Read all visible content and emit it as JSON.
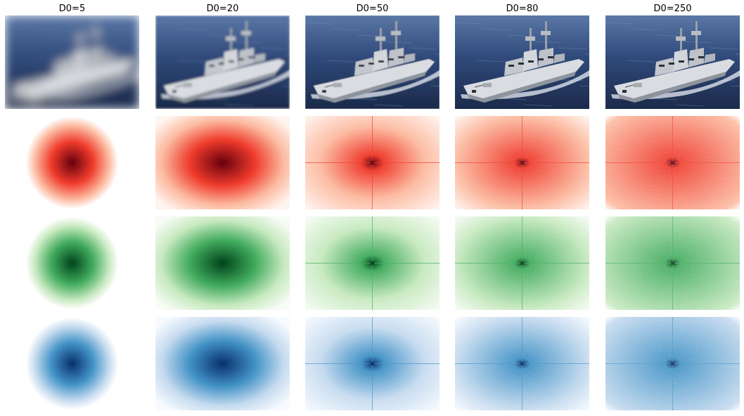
{
  "figure": {
    "columns": [
      {
        "title": "D0=5",
        "d0": 5
      },
      {
        "title": "D0=20",
        "d0": 20
      },
      {
        "title": "D0=50",
        "d0": 50
      },
      {
        "title": "D0=80",
        "d0": 80
      },
      {
        "title": "D0=250",
        "d0": 250
      }
    ],
    "rows": [
      {
        "kind": "filtered-image"
      },
      {
        "kind": "spectrum",
        "colormap": "Reds"
      },
      {
        "kind": "spectrum",
        "colormap": "Greens"
      },
      {
        "kind": "spectrum",
        "colormap": "Blues"
      }
    ],
    "colors": {
      "Reds": {
        "dark": "#67000d",
        "mid": "#ef3b2c",
        "light": "#fcbba1",
        "lightest": "#fff5f0"
      },
      "Greens": {
        "dark": "#00441b",
        "mid": "#41ab5d",
        "light": "#c7e9c0",
        "lightest": "#f7fcf5"
      },
      "Blues": {
        "dark": "#08306b",
        "mid": "#4292c6",
        "light": "#c6dbef",
        "lightest": "#f7fbff"
      },
      "sea": {
        "dark": "#1b2a4a",
        "mid": "#2f4a7a",
        "light": "#5a77a6"
      },
      "ship": {
        "hull": "#d9dce0",
        "shade": "#8e949c",
        "dark": "#2a2f36"
      }
    }
  }
}
